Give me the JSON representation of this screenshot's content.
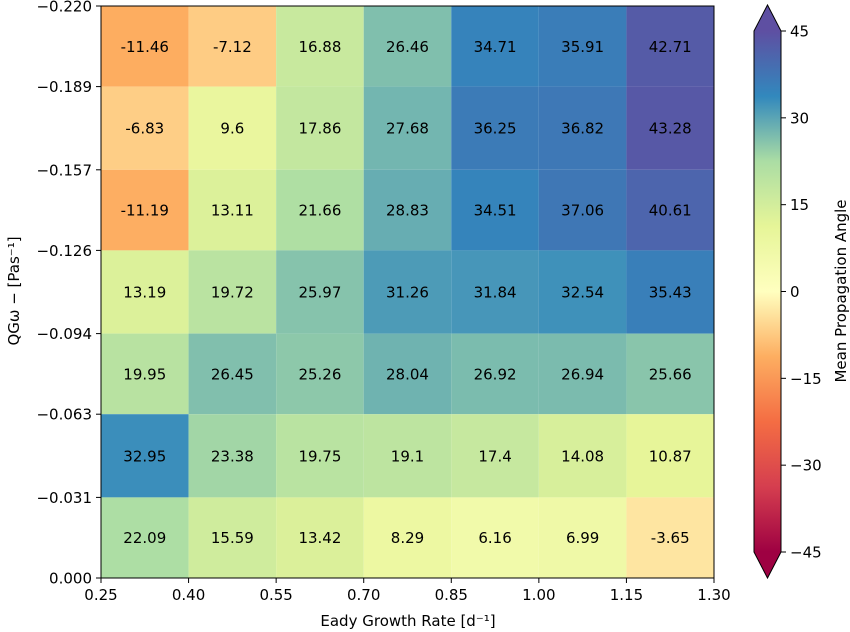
{
  "chart_data": {
    "type": "heatmap",
    "title": "",
    "xlabel": "Eady Growth Rate [d⁻¹]",
    "ylabel": "QGω − [Pas⁻¹]",
    "x_edges": [
      0.25,
      0.4,
      0.55,
      0.7,
      0.85,
      1.0,
      1.15,
      1.3
    ],
    "y_edges": [
      0.0,
      -0.031,
      -0.063,
      -0.094,
      -0.126,
      -0.157,
      -0.189,
      -0.22
    ],
    "x_tick_labels": [
      "0.25",
      "0.40",
      "0.55",
      "0.70",
      "0.85",
      "1.00",
      "1.15",
      "1.30"
    ],
    "y_tick_labels": [
      "0.000",
      "−0.031",
      "−0.063",
      "−0.094",
      "−0.126",
      "−0.157",
      "−0.189",
      "−0.220"
    ],
    "ylim": [
      0.0,
      -0.22
    ],
    "xlim": [
      0.25,
      1.3
    ],
    "rows_top_to_bottom": [
      [
        "-11.46",
        "-7.12",
        "16.88",
        "26.46",
        "34.71",
        "35.91",
        "42.71"
      ],
      [
        "-6.83",
        "9.6",
        "17.86",
        "27.68",
        "36.25",
        "36.82",
        "43.28"
      ],
      [
        "-11.19",
        "13.11",
        "21.66",
        "28.83",
        "34.51",
        "37.06",
        "40.61"
      ],
      [
        "13.19",
        "19.72",
        "25.97",
        "31.26",
        "31.84",
        "32.54",
        "35.43"
      ],
      [
        "19.95",
        "26.45",
        "25.26",
        "28.04",
        "26.92",
        "26.94",
        "25.66"
      ],
      [
        "32.95",
        "23.38",
        "19.75",
        "19.1",
        "17.4",
        "14.08",
        "10.87"
      ],
      [
        "22.09",
        "15.59",
        "13.42",
        "8.29",
        "6.16",
        "6.99",
        "-3.65"
      ]
    ],
    "colorbar": {
      "label": "Mean Propagation Angle",
      "min": -45,
      "max": 45,
      "ticks": [
        -45,
        -30,
        -15,
        0,
        15,
        30,
        45
      ],
      "tick_labels": [
        "−45",
        "−30",
        "−15",
        "0",
        "15",
        "30",
        "45"
      ],
      "colormap": "Spectral",
      "extend": "both"
    },
    "grid": false,
    "colors": {
      "-45": "#9e0142",
      "-33.75": "#d53e4f",
      "-22.5": "#f46d43",
      "-11.25": "#fdae61",
      "0": "#ffffbf",
      "11.25": "#e6f598",
      "22.5": "#abdda4",
      "33.75": "#3288bd",
      "45": "#5e4fa2"
    }
  }
}
